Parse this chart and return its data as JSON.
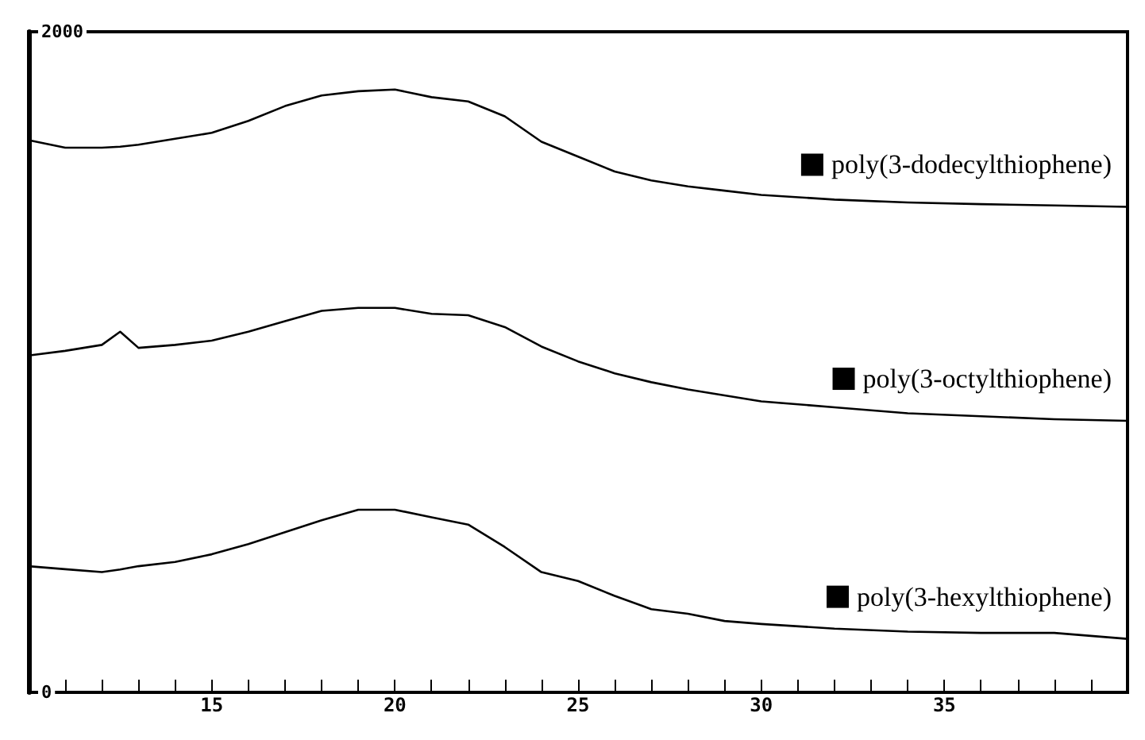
{
  "chart_data": {
    "type": "line",
    "x": [
      10,
      11,
      12,
      12.5,
      13,
      14,
      15,
      16,
      17,
      18,
      19,
      20,
      21,
      22,
      23,
      24,
      25,
      26,
      27,
      28,
      29,
      30,
      32,
      34,
      36,
      38,
      40
    ],
    "series": [
      {
        "name": "poly(3-dodecylthiophene)",
        "color": "#000000",
        "values": [
          1672,
          1649,
          1649,
          1652,
          1658,
          1676,
          1694,
          1730,
          1775,
          1807,
          1820,
          1825,
          1802,
          1789,
          1744,
          1667,
          1622,
          1577,
          1550,
          1532,
          1519,
          1506,
          1492,
          1483,
          1478,
          1474,
          1470
        ]
      },
      {
        "name": "poly(3-octylthiophene)",
        "color": "#000000",
        "values": [
          1020,
          1034,
          1052,
          1092,
          1043,
          1052,
          1065,
          1092,
          1124,
          1155,
          1164,
          1164,
          1146,
          1142,
          1106,
          1047,
          1002,
          966,
          939,
          917,
          899,
          881,
          863,
          845,
          836,
          827,
          822
        ]
      },
      {
        "name": "poly(3-hexylthiophene)",
        "color": "#000000",
        "values": [
          382,
          373,
          364,
          372,
          382,
          395,
          418,
          449,
          485,
          521,
          553,
          553,
          530,
          508,
          440,
          364,
          337,
          292,
          252,
          238,
          216,
          207,
          193,
          184,
          180,
          180,
          162
        ]
      }
    ],
    "xlim": [
      10,
      40
    ],
    "xticks": [
      15,
      20,
      25,
      30,
      35
    ],
    "ylim": [
      0,
      2000
    ],
    "yticks": [
      0,
      2000
    ],
    "grid": false,
    "legend": "right",
    "line_style": "solid"
  }
}
